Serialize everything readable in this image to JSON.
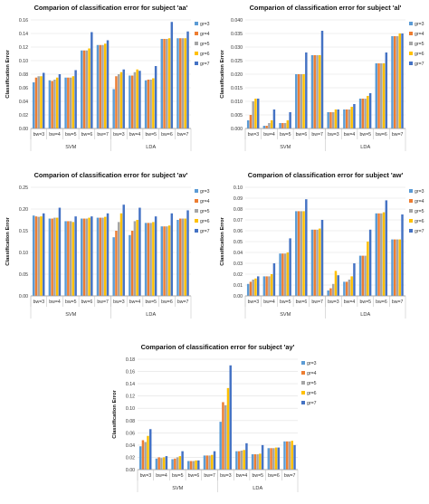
{
  "palette": [
    "#5b9bd5",
    "#ed7d31",
    "#a5a5a5",
    "#ffc000",
    "#4472c4"
  ],
  "chart_data": [
    {
      "type": "bar",
      "title": "Comparion of classification error for subject 'aa'",
      "ylabel": "Classification Error",
      "categories": [
        "bw=3",
        "bw=4",
        "bw=5",
        "bw=6",
        "bw=7",
        "bw=3",
        "bw=4",
        "bw=5",
        "bw=6",
        "bw=7"
      ],
      "groups": [
        "SVM",
        "LDA"
      ],
      "ylim": [
        0,
        0.16
      ],
      "yticks": [
        "0.00",
        "0.02",
        "0.04",
        "0.06",
        "0.08",
        "0.10",
        "0.12",
        "0.14",
        "0.16"
      ],
      "legend_position": "right",
      "series": [
        {
          "name": "gr=3",
          "values": [
            0.068,
            0.071,
            0.075,
            0.115,
            0.123,
            0.058,
            0.078,
            0.071,
            0.132,
            0.133
          ]
        },
        {
          "name": "gr=4",
          "values": [
            0.075,
            0.07,
            0.075,
            0.115,
            0.123,
            0.077,
            0.078,
            0.072,
            0.132,
            0.133
          ]
        },
        {
          "name": "gr=5",
          "values": [
            0.077,
            0.072,
            0.075,
            0.115,
            0.123,
            0.08,
            0.083,
            0.072,
            0.132,
            0.133
          ]
        },
        {
          "name": "gr=6",
          "values": [
            0.077,
            0.075,
            0.077,
            0.118,
            0.125,
            0.083,
            0.087,
            0.074,
            0.133,
            0.133
          ]
        },
        {
          "name": "gr=7",
          "values": [
            0.082,
            0.08,
            0.086,
            0.142,
            0.13,
            0.087,
            0.085,
            0.092,
            0.157,
            0.143
          ]
        }
      ]
    },
    {
      "type": "bar",
      "title": "Comparion of classification error for subject 'al'",
      "ylabel": "Classification Error",
      "categories": [
        "bw=3",
        "bw=4",
        "bw=5",
        "bw=6",
        "bw=7",
        "bw=3",
        "bw=4",
        "bw=5",
        "bw=6",
        "bw=7"
      ],
      "groups": [
        "SVM",
        "LDA"
      ],
      "ylim": [
        0,
        0.04
      ],
      "yticks": [
        "0.000",
        "0.005",
        "0.010",
        "0.015",
        "0.020",
        "0.025",
        "0.030",
        "0.035",
        "0.040"
      ],
      "legend_position": "right",
      "series": [
        {
          "name": "gr=3",
          "values": [
            0.003,
            0.001,
            0.002,
            0.02,
            0.027,
            0.006,
            0.007,
            0.011,
            0.024,
            0.034
          ]
        },
        {
          "name": "gr=4",
          "values": [
            0.005,
            0.001,
            0.002,
            0.02,
            0.027,
            0.006,
            0.007,
            0.011,
            0.024,
            0.034
          ]
        },
        {
          "name": "gr=5",
          "values": [
            0.01,
            0.002,
            0.002,
            0.02,
            0.027,
            0.006,
            0.007,
            0.011,
            0.024,
            0.034
          ]
        },
        {
          "name": "gr=6",
          "values": [
            0.011,
            0.003,
            0.003,
            0.02,
            0.027,
            0.007,
            0.008,
            0.012,
            0.024,
            0.035
          ]
        },
        {
          "name": "gr=7",
          "values": [
            0.011,
            0.007,
            0.006,
            0.028,
            0.036,
            0.007,
            0.009,
            0.013,
            0.028,
            0.035
          ]
        }
      ]
    },
    {
      "type": "bar",
      "title": "Comparion of classification error for subject 'av'",
      "ylabel": "Classification Error",
      "categories": [
        "bw=3",
        "bw=4",
        "bw=5",
        "bw=6",
        "bw=7",
        "bw=3",
        "bw=4",
        "bw=5",
        "bw=6",
        "bw=7"
      ],
      "groups": [
        "SVM",
        "LDA"
      ],
      "ylim": [
        0,
        0.25
      ],
      "yticks": [
        "0.00",
        "0.05",
        "0.10",
        "0.15",
        "0.20",
        "0.25"
      ],
      "legend_position": "right",
      "series": [
        {
          "name": "gr=3",
          "values": [
            0.185,
            0.178,
            0.172,
            0.178,
            0.18,
            0.135,
            0.14,
            0.168,
            0.16,
            0.175
          ]
        },
        {
          "name": "gr=4",
          "values": [
            0.183,
            0.178,
            0.172,
            0.178,
            0.18,
            0.15,
            0.15,
            0.168,
            0.16,
            0.178
          ]
        },
        {
          "name": "gr=5",
          "values": [
            0.182,
            0.18,
            0.172,
            0.178,
            0.18,
            0.17,
            0.172,
            0.168,
            0.16,
            0.178
          ]
        },
        {
          "name": "gr=6",
          "values": [
            0.183,
            0.18,
            0.17,
            0.18,
            0.182,
            0.19,
            0.175,
            0.17,
            0.162,
            0.178
          ]
        },
        {
          "name": "gr=7",
          "values": [
            0.19,
            0.203,
            0.183,
            0.183,
            0.19,
            0.21,
            0.203,
            0.183,
            0.19,
            0.197
          ]
        }
      ]
    },
    {
      "type": "bar",
      "title": "Comparion of classification error for subject 'aw'",
      "ylabel": "Classification Error",
      "categories": [
        "bw=3",
        "bw=4",
        "bw=5",
        "bw=6",
        "bw=7",
        "bw=3",
        "bw=4",
        "bw=5",
        "bw=6",
        "bw=7"
      ],
      "groups": [
        "SVM",
        "LDA"
      ],
      "ylim": [
        0,
        0.1
      ],
      "yticks": [
        "0.00",
        "0.01",
        "0.02",
        "0.03",
        "0.04",
        "0.05",
        "0.06",
        "0.07",
        "0.08",
        "0.09",
        "0.10"
      ],
      "legend_position": "right",
      "series": [
        {
          "name": "gr=3",
          "values": [
            0.011,
            0.018,
            0.039,
            0.078,
            0.061,
            0.005,
            0.013,
            0.037,
            0.076,
            0.052
          ]
        },
        {
          "name": "gr=4",
          "values": [
            0.013,
            0.018,
            0.039,
            0.078,
            0.061,
            0.007,
            0.013,
            0.037,
            0.076,
            0.052
          ]
        },
        {
          "name": "gr=5",
          "values": [
            0.015,
            0.018,
            0.039,
            0.078,
            0.061,
            0.011,
            0.015,
            0.037,
            0.076,
            0.052
          ]
        },
        {
          "name": "gr=6",
          "values": [
            0.016,
            0.02,
            0.04,
            0.078,
            0.062,
            0.023,
            0.018,
            0.05,
            0.077,
            0.052
          ]
        },
        {
          "name": "gr=7",
          "values": [
            0.018,
            0.03,
            0.053,
            0.089,
            0.07,
            0.019,
            0.03,
            0.061,
            0.088,
            0.075
          ]
        }
      ]
    },
    {
      "type": "bar",
      "title": "Comparion of classification error for subject 'ay'",
      "ylabel": "Classification Error",
      "categories": [
        "bw=3",
        "bw=4",
        "bw=5",
        "bw=6",
        "bw=7",
        "bw=3",
        "bw=4",
        "bw=5",
        "bw=6",
        "bw=7"
      ],
      "groups": [
        "SVM",
        "LDA"
      ],
      "ylim": [
        0,
        0.18
      ],
      "yticks": [
        "0.00",
        "0.02",
        "0.04",
        "0.06",
        "0.08",
        "0.10",
        "0.12",
        "0.14",
        "0.16",
        "0.18"
      ],
      "legend_position": "right",
      "series": [
        {
          "name": "gr=3",
          "values": [
            0.038,
            0.018,
            0.017,
            0.014,
            0.023,
            0.078,
            0.03,
            0.025,
            0.035,
            0.046
          ]
        },
        {
          "name": "gr=4",
          "values": [
            0.048,
            0.02,
            0.018,
            0.014,
            0.023,
            0.11,
            0.03,
            0.025,
            0.035,
            0.046
          ]
        },
        {
          "name": "gr=5",
          "values": [
            0.045,
            0.019,
            0.02,
            0.014,
            0.023,
            0.105,
            0.031,
            0.025,
            0.035,
            0.046
          ]
        },
        {
          "name": "gr=6",
          "values": [
            0.055,
            0.02,
            0.022,
            0.015,
            0.024,
            0.133,
            0.032,
            0.026,
            0.036,
            0.047
          ]
        },
        {
          "name": "gr=7",
          "values": [
            0.066,
            0.022,
            0.03,
            0.015,
            0.03,
            0.17,
            0.043,
            0.04,
            0.036,
            0.04
          ]
        }
      ]
    }
  ]
}
